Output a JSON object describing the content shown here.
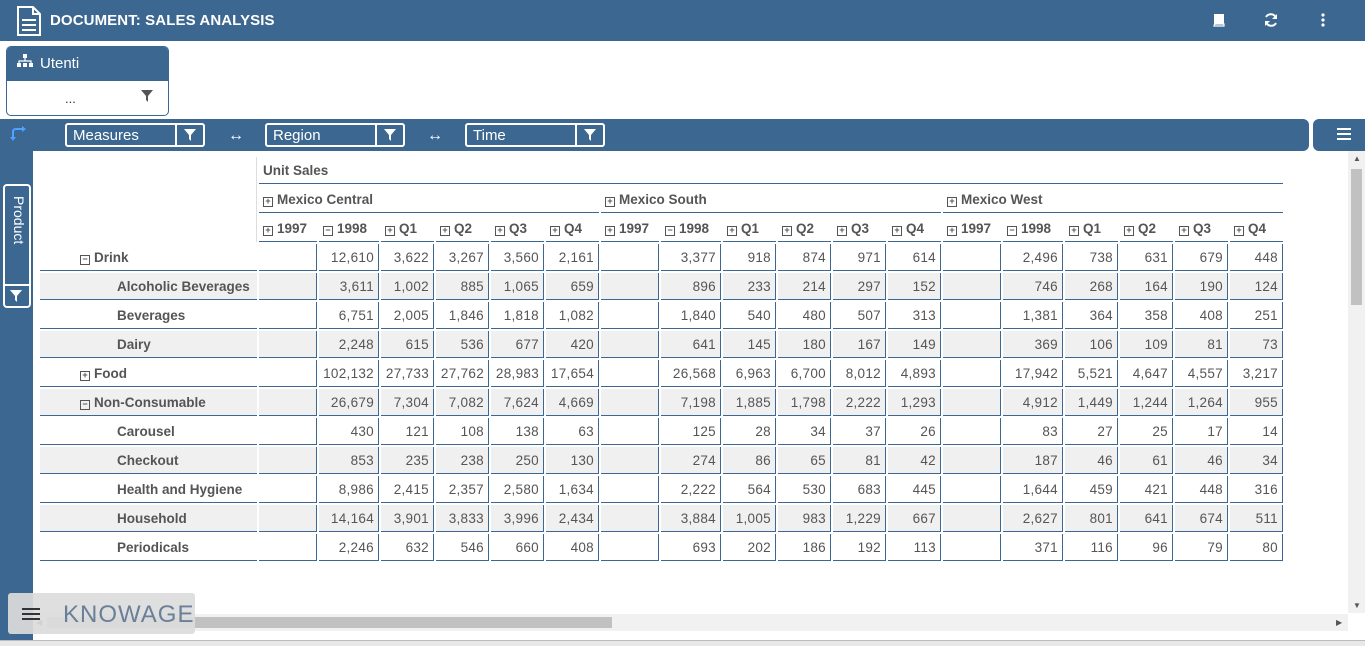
{
  "header": {
    "title": "DOCUMENT: SALES ANALYSIS"
  },
  "filter_panel": {
    "title": "Utenti",
    "value": "..."
  },
  "toolbar": {
    "dropdowns": [
      "Measures",
      "Region",
      "Time"
    ],
    "swap_symbol": "↔"
  },
  "side_panel": {
    "label": "Product"
  },
  "pivot": {
    "measure": "Unit Sales",
    "regions": [
      "Mexico Central",
      "Mexico South",
      "Mexico West"
    ],
    "period_headers": [
      "1997",
      "1998",
      "Q1",
      "Q2",
      "Q3",
      "Q4"
    ],
    "rows": [
      {
        "label": "Drink",
        "level": 1,
        "toggle": "minus",
        "values": [
          [
            "",
            "12,610",
            "3,622",
            "3,267",
            "3,560",
            "2,161"
          ],
          [
            "",
            "3,377",
            "918",
            "874",
            "971",
            "614"
          ],
          [
            "",
            "2,496",
            "738",
            "631",
            "679",
            "448"
          ]
        ]
      },
      {
        "label": "Alcoholic Beverages",
        "level": 2,
        "toggle": "",
        "values": [
          [
            "",
            "3,611",
            "1,002",
            "885",
            "1,065",
            "659"
          ],
          [
            "",
            "896",
            "233",
            "214",
            "297",
            "152"
          ],
          [
            "",
            "746",
            "268",
            "164",
            "190",
            "124"
          ]
        ]
      },
      {
        "label": "Beverages",
        "level": 2,
        "toggle": "",
        "values": [
          [
            "",
            "6,751",
            "2,005",
            "1,846",
            "1,818",
            "1,082"
          ],
          [
            "",
            "1,840",
            "540",
            "480",
            "507",
            "313"
          ],
          [
            "",
            "1,381",
            "364",
            "358",
            "408",
            "251"
          ]
        ]
      },
      {
        "label": "Dairy",
        "level": 2,
        "toggle": "",
        "values": [
          [
            "",
            "2,248",
            "615",
            "536",
            "677",
            "420"
          ],
          [
            "",
            "641",
            "145",
            "180",
            "167",
            "149"
          ],
          [
            "",
            "369",
            "106",
            "109",
            "81",
            "73"
          ]
        ]
      },
      {
        "label": "Food",
        "level": 1,
        "toggle": "plus",
        "values": [
          [
            "",
            "102,132",
            "27,733",
            "27,762",
            "28,983",
            "17,654"
          ],
          [
            "",
            "26,568",
            "6,963",
            "6,700",
            "8,012",
            "4,893"
          ],
          [
            "",
            "17,942",
            "5,521",
            "4,647",
            "4,557",
            "3,217"
          ]
        ]
      },
      {
        "label": "Non-Consumable",
        "level": 1,
        "toggle": "minus",
        "values": [
          [
            "",
            "26,679",
            "7,304",
            "7,082",
            "7,624",
            "4,669"
          ],
          [
            "",
            "7,198",
            "1,885",
            "1,798",
            "2,222",
            "1,293"
          ],
          [
            "",
            "4,912",
            "1,449",
            "1,244",
            "1,264",
            "955"
          ]
        ]
      },
      {
        "label": "Carousel",
        "level": 2,
        "toggle": "",
        "values": [
          [
            "",
            "430",
            "121",
            "108",
            "138",
            "63"
          ],
          [
            "",
            "125",
            "28",
            "34",
            "37",
            "26"
          ],
          [
            "",
            "83",
            "27",
            "25",
            "17",
            "14"
          ]
        ]
      },
      {
        "label": "Checkout",
        "level": 2,
        "toggle": "",
        "values": [
          [
            "",
            "853",
            "235",
            "238",
            "250",
            "130"
          ],
          [
            "",
            "274",
            "86",
            "65",
            "81",
            "42"
          ],
          [
            "",
            "187",
            "46",
            "61",
            "46",
            "34"
          ]
        ]
      },
      {
        "label": "Health and Hygiene",
        "level": 2,
        "toggle": "",
        "values": [
          [
            "",
            "8,986",
            "2,415",
            "2,357",
            "2,580",
            "1,634"
          ],
          [
            "",
            "2,222",
            "564",
            "530",
            "683",
            "445"
          ],
          [
            "",
            "1,644",
            "459",
            "421",
            "448",
            "316"
          ]
        ]
      },
      {
        "label": "Household",
        "level": 2,
        "toggle": "",
        "values": [
          [
            "",
            "14,164",
            "3,901",
            "3,833",
            "3,996",
            "2,434"
          ],
          [
            "",
            "3,884",
            "1,005",
            "983",
            "1,229",
            "667"
          ],
          [
            "",
            "2,627",
            "801",
            "641",
            "674",
            "511"
          ]
        ]
      },
      {
        "label": "Periodicals",
        "level": 2,
        "toggle": "",
        "values": [
          [
            "",
            "2,246",
            "632",
            "546",
            "660",
            "408"
          ],
          [
            "",
            "693",
            "202",
            "186",
            "192",
            "113"
          ],
          [
            "",
            "371",
            "116",
            "96",
            "79",
            "80"
          ]
        ]
      }
    ]
  },
  "brand": {
    "name": "KNOWAGE"
  },
  "colors": {
    "primary": "#3b6790",
    "row_alt": "#f0f0f0",
    "swap_icon": "#4da3ff"
  }
}
